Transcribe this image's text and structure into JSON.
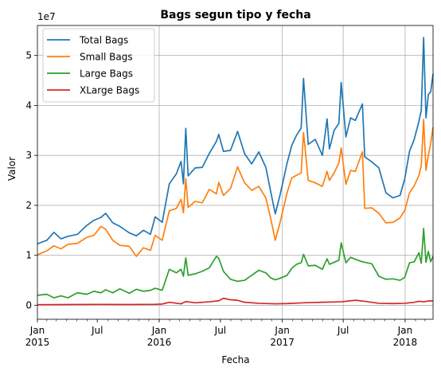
{
  "chart_data": {
    "type": "line",
    "title": "Bags segun tipo y fecha",
    "xlabel": "Fecha",
    "ylabel": "Valor",
    "y_offset_label": "1e7",
    "xlim": [
      "2015-01-04",
      "2018-03-25"
    ],
    "ylim": [
      -2800000,
      56000000
    ],
    "yticks": [
      0,
      10000000,
      20000000,
      30000000,
      40000000,
      50000000
    ],
    "ytick_labels": [
      "0",
      "1",
      "2",
      "3",
      "4",
      "5"
    ],
    "xticks": [
      {
        "date": "2015-01-01",
        "label": "Jan",
        "year": "2015",
        "major": true,
        "grid": false
      },
      {
        "date": "2015-07-01",
        "label": "Jul",
        "year": "",
        "major": true,
        "grid": false
      },
      {
        "date": "2016-01-01",
        "label": "Jan",
        "year": "2016",
        "major": true,
        "grid": true
      },
      {
        "date": "2016-07-01",
        "label": "Jul",
        "year": "",
        "major": true,
        "grid": false
      },
      {
        "date": "2017-01-01",
        "label": "Jan",
        "year": "2017",
        "major": true,
        "grid": true
      },
      {
        "date": "2017-07-01",
        "label": "Jul",
        "year": "",
        "major": true,
        "grid": true
      },
      {
        "date": "2018-01-01",
        "label": "Jan",
        "year": "2018",
        "major": true,
        "grid": true
      }
    ],
    "grid": true,
    "legend_position": "top-left",
    "series": [
      {
        "name": "Total Bags",
        "color": "#1f77b4",
        "points": [
          [
            "2015-01-04",
            12.3
          ],
          [
            "2015-02-01",
            13.0
          ],
          [
            "2015-02-22",
            14.6
          ],
          [
            "2015-03-15",
            13.3
          ],
          [
            "2015-04-05",
            13.8
          ],
          [
            "2015-05-03",
            14.2
          ],
          [
            "2015-05-31",
            16.0
          ],
          [
            "2015-06-21",
            17.0
          ],
          [
            "2015-07-12",
            17.6
          ],
          [
            "2015-07-26",
            18.4
          ],
          [
            "2015-08-16",
            16.5
          ],
          [
            "2015-09-06",
            15.8
          ],
          [
            "2015-10-04",
            14.5
          ],
          [
            "2015-10-25",
            13.9
          ],
          [
            "2015-11-15",
            15.0
          ],
          [
            "2015-12-06",
            14.2
          ],
          [
            "2015-12-20",
            17.7
          ],
          [
            "2016-01-10",
            16.6
          ],
          [
            "2016-01-31",
            24.3
          ],
          [
            "2016-02-21",
            26.3
          ],
          [
            "2016-03-06",
            28.8
          ],
          [
            "2016-03-13",
            24.3
          ],
          [
            "2016-03-20",
            35.4
          ],
          [
            "2016-03-27",
            25.9
          ],
          [
            "2016-04-17",
            27.5
          ],
          [
            "2016-05-08",
            27.6
          ],
          [
            "2016-05-29",
            30.4
          ],
          [
            "2016-06-19",
            32.8
          ],
          [
            "2016-06-26",
            34.2
          ],
          [
            "2016-07-10",
            30.8
          ],
          [
            "2016-07-31",
            31.0
          ],
          [
            "2016-08-21",
            34.8
          ],
          [
            "2016-09-11",
            30.3
          ],
          [
            "2016-10-02",
            28.3
          ],
          [
            "2016-10-23",
            30.7
          ],
          [
            "2016-11-13",
            27.6
          ],
          [
            "2016-11-27",
            22.9
          ],
          [
            "2016-12-11",
            18.3
          ],
          [
            "2016-12-25",
            22.0
          ],
          [
            "2017-01-15",
            28.4
          ],
          [
            "2017-01-29",
            32.0
          ],
          [
            "2017-02-12",
            34.0
          ],
          [
            "2017-02-26",
            35.5
          ],
          [
            "2017-03-05",
            45.4
          ],
          [
            "2017-03-19",
            32.2
          ],
          [
            "2017-04-09",
            33.2
          ],
          [
            "2017-04-30",
            30.0
          ],
          [
            "2017-05-14",
            37.3
          ],
          [
            "2017-05-21",
            31.3
          ],
          [
            "2017-06-04",
            35.0
          ],
          [
            "2017-06-18",
            36.4
          ],
          [
            "2017-06-25",
            44.6
          ],
          [
            "2017-07-09",
            33.7
          ],
          [
            "2017-07-23",
            37.5
          ],
          [
            "2017-08-06",
            37.0
          ],
          [
            "2017-08-27",
            40.3
          ],
          [
            "2017-09-03",
            29.7
          ],
          [
            "2017-09-24",
            28.7
          ],
          [
            "2017-10-15",
            27.5
          ],
          [
            "2017-11-05",
            22.5
          ],
          [
            "2017-11-26",
            21.5
          ],
          [
            "2017-12-17",
            22.0
          ],
          [
            "2017-12-31",
            25.3
          ],
          [
            "2018-01-14",
            30.8
          ],
          [
            "2018-01-28",
            33.2
          ],
          [
            "2018-02-11",
            36.8
          ],
          [
            "2018-02-18",
            39.0
          ],
          [
            "2018-02-25",
            53.6
          ],
          [
            "2018-03-04",
            37.5
          ],
          [
            "2018-03-11",
            42.2
          ],
          [
            "2018-03-18",
            42.7
          ],
          [
            "2018-03-25",
            46.3
          ]
        ]
      },
      {
        "name": "Small Bags",
        "color": "#ff7f0e",
        "points": [
          [
            "2015-01-04",
            10.1
          ],
          [
            "2015-02-01",
            10.9
          ],
          [
            "2015-02-22",
            11.9
          ],
          [
            "2015-03-15",
            11.3
          ],
          [
            "2015-04-05",
            12.2
          ],
          [
            "2015-05-03",
            12.4
          ],
          [
            "2015-05-31",
            13.6
          ],
          [
            "2015-06-21",
            14.0
          ],
          [
            "2015-07-12",
            15.8
          ],
          [
            "2015-07-26",
            15.2
          ],
          [
            "2015-08-16",
            13.0
          ],
          [
            "2015-09-06",
            12.0
          ],
          [
            "2015-10-04",
            11.8
          ],
          [
            "2015-10-25",
            9.8
          ],
          [
            "2015-11-15",
            11.5
          ],
          [
            "2015-12-06",
            11.0
          ],
          [
            "2015-12-20",
            14.0
          ],
          [
            "2016-01-10",
            13.0
          ],
          [
            "2016-01-31",
            18.9
          ],
          [
            "2016-02-21",
            19.4
          ],
          [
            "2016-03-06",
            21.2
          ],
          [
            "2016-03-13",
            18.5
          ],
          [
            "2016-03-20",
            25.3
          ],
          [
            "2016-03-27",
            19.6
          ],
          [
            "2016-04-17",
            20.8
          ],
          [
            "2016-05-08",
            20.5
          ],
          [
            "2016-05-29",
            23.2
          ],
          [
            "2016-06-19",
            22.3
          ],
          [
            "2016-06-26",
            24.6
          ],
          [
            "2016-07-10",
            22.0
          ],
          [
            "2016-07-31",
            23.4
          ],
          [
            "2016-08-21",
            27.7
          ],
          [
            "2016-09-11",
            24.5
          ],
          [
            "2016-10-02",
            23.0
          ],
          [
            "2016-10-23",
            23.8
          ],
          [
            "2016-11-13",
            21.5
          ],
          [
            "2016-11-27",
            17.5
          ],
          [
            "2016-12-11",
            13.0
          ],
          [
            "2016-12-25",
            16.5
          ],
          [
            "2017-01-15",
            22.5
          ],
          [
            "2017-01-29",
            25.5
          ],
          [
            "2017-02-12",
            26.0
          ],
          [
            "2017-02-26",
            26.5
          ],
          [
            "2017-03-05",
            34.6
          ],
          [
            "2017-03-19",
            25.0
          ],
          [
            "2017-04-09",
            24.5
          ],
          [
            "2017-04-30",
            23.8
          ],
          [
            "2017-05-14",
            26.8
          ],
          [
            "2017-05-21",
            25.0
          ],
          [
            "2017-06-04",
            26.5
          ],
          [
            "2017-06-18",
            28.5
          ],
          [
            "2017-06-25",
            31.5
          ],
          [
            "2017-07-09",
            24.2
          ],
          [
            "2017-07-23",
            27.0
          ],
          [
            "2017-08-06",
            26.8
          ],
          [
            "2017-08-27",
            30.7
          ],
          [
            "2017-09-03",
            19.4
          ],
          [
            "2017-09-24",
            19.5
          ],
          [
            "2017-10-15",
            18.4
          ],
          [
            "2017-11-05",
            16.5
          ],
          [
            "2017-11-26",
            16.6
          ],
          [
            "2017-12-17",
            17.5
          ],
          [
            "2017-12-31",
            19.0
          ],
          [
            "2018-01-14",
            22.5
          ],
          [
            "2018-01-28",
            23.9
          ],
          [
            "2018-02-11",
            26.0
          ],
          [
            "2018-02-18",
            28.0
          ],
          [
            "2018-02-25",
            37.2
          ],
          [
            "2018-03-04",
            27.0
          ],
          [
            "2018-03-11",
            30.0
          ],
          [
            "2018-03-18",
            32.4
          ],
          [
            "2018-03-25",
            35.6
          ]
        ]
      },
      {
        "name": "Large Bags",
        "color": "#2ca02c",
        "points": [
          [
            "2015-01-04",
            2.0
          ],
          [
            "2015-02-01",
            2.2
          ],
          [
            "2015-02-22",
            1.5
          ],
          [
            "2015-03-15",
            1.9
          ],
          [
            "2015-04-05",
            1.5
          ],
          [
            "2015-05-03",
            2.5
          ],
          [
            "2015-05-31",
            2.2
          ],
          [
            "2015-06-21",
            2.8
          ],
          [
            "2015-07-12",
            2.5
          ],
          [
            "2015-07-26",
            3.1
          ],
          [
            "2015-08-16",
            2.5
          ],
          [
            "2015-09-06",
            3.3
          ],
          [
            "2015-10-04",
            2.4
          ],
          [
            "2015-10-25",
            3.2
          ],
          [
            "2015-11-15",
            2.8
          ],
          [
            "2015-12-06",
            3.0
          ],
          [
            "2015-12-20",
            3.4
          ],
          [
            "2016-01-10",
            3.0
          ],
          [
            "2016-01-31",
            7.2
          ],
          [
            "2016-02-21",
            6.5
          ],
          [
            "2016-03-06",
            7.2
          ],
          [
            "2016-03-13",
            5.8
          ],
          [
            "2016-03-20",
            9.5
          ],
          [
            "2016-03-27",
            6.0
          ],
          [
            "2016-04-17",
            6.3
          ],
          [
            "2016-05-08",
            6.8
          ],
          [
            "2016-05-29",
            7.5
          ],
          [
            "2016-06-19",
            9.8
          ],
          [
            "2016-06-26",
            9.4
          ],
          [
            "2016-07-10",
            6.8
          ],
          [
            "2016-07-31",
            5.2
          ],
          [
            "2016-08-21",
            4.8
          ],
          [
            "2016-09-11",
            5.0
          ],
          [
            "2016-10-02",
            6.0
          ],
          [
            "2016-10-23",
            7.0
          ],
          [
            "2016-11-13",
            6.5
          ],
          [
            "2016-11-27",
            5.5
          ],
          [
            "2016-12-11",
            5.1
          ],
          [
            "2016-12-25",
            5.4
          ],
          [
            "2017-01-15",
            6.0
          ],
          [
            "2017-01-29",
            7.4
          ],
          [
            "2017-02-12",
            8.2
          ],
          [
            "2017-02-26",
            8.5
          ],
          [
            "2017-03-05",
            10.2
          ],
          [
            "2017-03-19",
            7.9
          ],
          [
            "2017-04-09",
            8.0
          ],
          [
            "2017-04-30",
            7.2
          ],
          [
            "2017-05-14",
            9.3
          ],
          [
            "2017-05-21",
            8.2
          ],
          [
            "2017-06-04",
            8.6
          ],
          [
            "2017-06-18",
            9.0
          ],
          [
            "2017-06-25",
            12.5
          ],
          [
            "2017-07-09",
            8.5
          ],
          [
            "2017-07-23",
            9.6
          ],
          [
            "2017-08-06",
            9.2
          ],
          [
            "2017-08-27",
            8.7
          ],
          [
            "2017-09-03",
            8.6
          ],
          [
            "2017-09-24",
            8.3
          ],
          [
            "2017-10-15",
            5.8
          ],
          [
            "2017-11-05",
            5.2
          ],
          [
            "2017-11-26",
            5.3
          ],
          [
            "2017-12-17",
            5.0
          ],
          [
            "2017-12-31",
            5.6
          ],
          [
            "2018-01-14",
            8.5
          ],
          [
            "2018-01-28",
            8.7
          ],
          [
            "2018-02-11",
            10.5
          ],
          [
            "2018-02-18",
            8.4
          ],
          [
            "2018-02-25",
            15.4
          ],
          [
            "2018-03-04",
            8.6
          ],
          [
            "2018-03-11",
            10.8
          ],
          [
            "2018-03-18",
            8.7
          ],
          [
            "2018-03-25",
            9.8
          ]
        ]
      },
      {
        "name": "XLarge Bags",
        "color": "#d62728",
        "points": [
          [
            "2015-01-04",
            0.12
          ],
          [
            "2015-04-05",
            0.15
          ],
          [
            "2015-07-12",
            0.18
          ],
          [
            "2015-10-04",
            0.15
          ],
          [
            "2015-12-20",
            0.2
          ],
          [
            "2016-01-10",
            0.25
          ],
          [
            "2016-01-31",
            0.6
          ],
          [
            "2016-03-06",
            0.3
          ],
          [
            "2016-03-20",
            0.75
          ],
          [
            "2016-04-17",
            0.5
          ],
          [
            "2016-05-29",
            0.7
          ],
          [
            "2016-06-26",
            0.9
          ],
          [
            "2016-07-10",
            1.4
          ],
          [
            "2016-07-31",
            1.1
          ],
          [
            "2016-08-21",
            1.0
          ],
          [
            "2016-09-11",
            0.6
          ],
          [
            "2016-10-23",
            0.4
          ],
          [
            "2016-12-11",
            0.3
          ],
          [
            "2017-01-15",
            0.35
          ],
          [
            "2017-03-05",
            0.5
          ],
          [
            "2017-04-30",
            0.6
          ],
          [
            "2017-06-25",
            0.7
          ],
          [
            "2017-08-06",
            1.0
          ],
          [
            "2017-09-03",
            0.8
          ],
          [
            "2017-10-15",
            0.4
          ],
          [
            "2017-11-26",
            0.35
          ],
          [
            "2017-12-31",
            0.4
          ],
          [
            "2018-01-28",
            0.6
          ],
          [
            "2018-02-11",
            0.8
          ],
          [
            "2018-02-25",
            0.7
          ],
          [
            "2018-03-11",
            0.85
          ],
          [
            "2018-03-25",
            0.9
          ]
        ]
      }
    ]
  }
}
